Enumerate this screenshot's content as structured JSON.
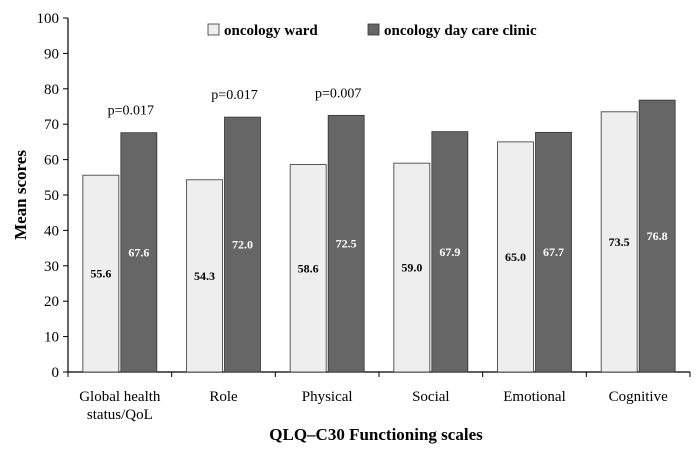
{
  "chart_data": {
    "type": "bar",
    "xlabel": "QLQ–C30 Functioning scales",
    "ylabel": "Mean scores",
    "ylim": [
      0,
      100
    ],
    "yticks": [
      0,
      10,
      20,
      30,
      40,
      50,
      60,
      70,
      80,
      90,
      100
    ],
    "grid": false,
    "legend_position": "top",
    "categories": [
      [
        "Global health",
        "status/QoL"
      ],
      [
        "Role"
      ],
      [
        "Physical"
      ],
      [
        "Social"
      ],
      [
        "Emotional"
      ],
      [
        "Cognitive"
      ]
    ],
    "series": [
      {
        "name": "oncology ward",
        "color": "#eeeeee",
        "label_color": "#000000",
        "values": [
          55.6,
          54.3,
          58.6,
          59.0,
          65.0,
          73.5
        ],
        "labels": [
          "55.6",
          "54.3",
          "58.6",
          "59.0",
          "65.0",
          "73.5"
        ]
      },
      {
        "name": "oncology day care clinic",
        "color": "#666666",
        "label_color": "#ffffff",
        "values": [
          67.6,
          72.0,
          72.5,
          67.9,
          67.7,
          76.8
        ],
        "labels": [
          "67.6",
          "72.0",
          "72.5",
          "67.9",
          "67.7",
          "76.8"
        ]
      }
    ],
    "annotations": [
      {
        "category_index": 0,
        "text": "p=0.017"
      },
      {
        "category_index": 1,
        "text": "p=0.017"
      },
      {
        "category_index": 2,
        "text": "p=0.007"
      }
    ]
  }
}
